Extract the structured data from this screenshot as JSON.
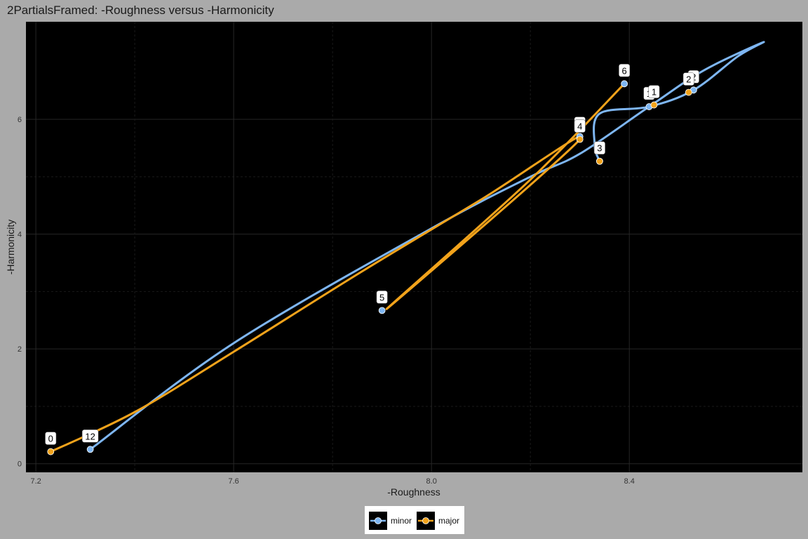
{
  "chart_data": {
    "type": "line",
    "title": "2PartialsFramed: -Roughness versus -Harmonicity",
    "xlabel": "-Roughness",
    "ylabel": "-Harmonicity",
    "xlim": [
      7.18,
      8.75
    ],
    "ylim": [
      -0.15,
      7.7
    ],
    "x_ticks": [
      7.2,
      7.6,
      8.0,
      8.4
    ],
    "x_tick_labels": [
      "7.2",
      "7.6",
      "8.0",
      "8.4"
    ],
    "y_ticks": [
      0,
      2,
      4,
      6
    ],
    "y_tick_labels": [
      "0",
      "2",
      "4",
      "6"
    ],
    "background": "#000000",
    "grid": true,
    "legend_position": "bottom",
    "series": [
      {
        "name": "minor",
        "color": "#7eb6f2",
        "points": [
          {
            "label": "12",
            "x": 7.31,
            "y": 0.25
          },
          {
            "label": "5",
            "x": 7.9,
            "y": 2.67
          },
          {
            "label": "4",
            "x": 8.3,
            "y": 5.7
          },
          {
            "label": "3",
            "x": 8.34,
            "y": 5.27
          },
          {
            "label": "6",
            "x": 8.39,
            "y": 6.62
          },
          {
            "label": "1",
            "x": 8.44,
            "y": 6.22
          },
          {
            "label": "2",
            "x": 8.53,
            "y": 6.51
          }
        ],
        "path": [
          {
            "x": 7.31,
            "y": 0.25
          },
          {
            "x": 7.6,
            "y": 2.1
          },
          {
            "x": 8.0,
            "y": 4.1
          },
          {
            "x": 8.2,
            "y": 5.0
          },
          {
            "x": 8.3,
            "y": 5.4
          },
          {
            "x": 8.44,
            "y": 6.22
          },
          {
            "x": 8.55,
            "y": 6.85
          },
          {
            "x": 8.67,
            "y": 7.34
          },
          {
            "x": 8.62,
            "y": 7.1
          },
          {
            "x": 8.53,
            "y": 6.51
          },
          {
            "x": 8.44,
            "y": 6.22
          },
          {
            "x": 8.34,
            "y": 6.1
          },
          {
            "x": 8.33,
            "y": 5.55
          },
          {
            "x": 8.34,
            "y": 5.27
          }
        ]
      },
      {
        "name": "major",
        "color": "#f2a31b",
        "points": [
          {
            "label": "0",
            "x": 7.23,
            "y": 0.21
          },
          {
            "label": "4",
            "x": 8.3,
            "y": 5.65
          },
          {
            "label": "3",
            "x": 8.34,
            "y": 5.27
          },
          {
            "label": "1",
            "x": 8.45,
            "y": 6.25
          },
          {
            "label": "2",
            "x": 8.52,
            "y": 6.47
          }
        ],
        "path": [
          {
            "x": 7.23,
            "y": 0.21
          },
          {
            "x": 7.4,
            "y": 0.9
          },
          {
            "x": 7.6,
            "y": 1.95
          },
          {
            "x": 7.85,
            "y": 3.3
          },
          {
            "x": 8.1,
            "y": 4.6
          },
          {
            "x": 8.3,
            "y": 5.65
          },
          {
            "x": 7.91,
            "y": 2.7
          },
          {
            "x": 8.2,
            "y": 4.95
          },
          {
            "x": 8.39,
            "y": 6.62
          }
        ]
      }
    ]
  },
  "legend": {
    "items": [
      {
        "name": "minor",
        "color": "#7eb6f2"
      },
      {
        "name": "major",
        "color": "#f2a31b"
      }
    ]
  }
}
